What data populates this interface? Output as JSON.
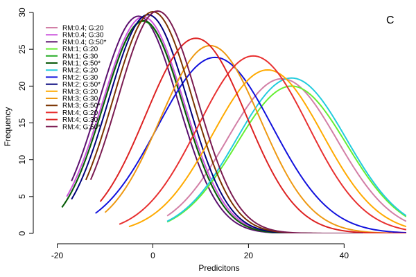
{
  "chart_data": {
    "type": "line",
    "title": "",
    "panel_label": "C",
    "xlabel": "Predicitons",
    "ylabel": "Frequency",
    "xlim": [
      -25,
      53
    ],
    "ylim": [
      0,
      30
    ],
    "xticks": [
      -20,
      0,
      20,
      40
    ],
    "yticks": [
      0,
      5,
      10,
      15,
      20,
      25,
      30
    ],
    "grid": false,
    "legend_position": "top-left",
    "series": [
      {
        "name": "RM:0.4; G:20",
        "color": "#d27fa6",
        "x_range": [
          3,
          53
        ],
        "peak_x": 27,
        "peak_y": 21,
        "width": 11.5
      },
      {
        "name": "RM:0.4; G:30",
        "color": "#cc55dd",
        "x_range": [
          -18,
          42
        ],
        "peak_x": -2,
        "peak_y": 29.4,
        "width": 8.5
      },
      {
        "name": "RM:0.4; G:50*",
        "color": "#5b0f6e",
        "x_range": [
          -17,
          40
        ],
        "peak_x": -3,
        "peak_y": 29.5,
        "width": 8.3
      },
      {
        "name": "RM:1; G:20",
        "color": "#66ee33",
        "x_range": [
          3,
          53
        ],
        "peak_x": 29,
        "peak_y": 20,
        "width": 11.5
      },
      {
        "name": "RM:1; G:30",
        "color": "#22aa22",
        "x_range": [
          -19,
          40
        ],
        "peak_x": -2,
        "peak_y": 28.8,
        "width": 8.3
      },
      {
        "name": "RM:1; G:50*",
        "color": "#0a5a0a",
        "x_range": [
          -19,
          40
        ],
        "peak_x": -2,
        "peak_y": 28.9,
        "width": 8.3
      },
      {
        "name": "RM:2; G:20",
        "color": "#22ccdd",
        "x_range": [
          3,
          53
        ],
        "peak_x": 29,
        "peak_y": 21.1,
        "width": 11.5
      },
      {
        "name": "RM:2; G:30",
        "color": "#1111dd",
        "x_range": [
          -12,
          53
        ],
        "peak_x": 13,
        "peak_y": 23.9,
        "width": 12
      },
      {
        "name": "RM:2; G:50*",
        "color": "#00007a",
        "x_range": [
          -17,
          40
        ],
        "peak_x": -1,
        "peak_y": 29.7,
        "width": 8.3
      },
      {
        "name": "RM:3; G:20",
        "color": "#ffaa00",
        "x_range": [
          -5,
          53
        ],
        "peak_x": 24,
        "peak_y": 22.2,
        "width": 11.5
      },
      {
        "name": "RM:3; G:30",
        "color": "#ee9911",
        "x_range": [
          -10,
          50
        ],
        "peak_x": 12,
        "peak_y": 25.5,
        "width": 10.5
      },
      {
        "name": "RM:3; G:50*",
        "color": "#7a3300",
        "x_range": [
          -14,
          40
        ],
        "peak_x": 0,
        "peak_y": 30.1,
        "width": 8.3
      },
      {
        "name": "RM:4; G:20",
        "color": "#e83030",
        "x_range": [
          -7,
          53
        ],
        "peak_x": 21,
        "peak_y": 24.1,
        "width": 11.5
      },
      {
        "name": "RM:4; G:30",
        "color": "#dd2222",
        "x_range": [
          -11,
          53
        ],
        "peak_x": 9,
        "peak_y": 26.5,
        "width": 10.5
      },
      {
        "name": "RM:4; G:50*",
        "color": "#7a1a50",
        "x_range": [
          -13,
          44
        ],
        "peak_x": 1,
        "peak_y": 30.2,
        "width": 8.3
      }
    ]
  }
}
